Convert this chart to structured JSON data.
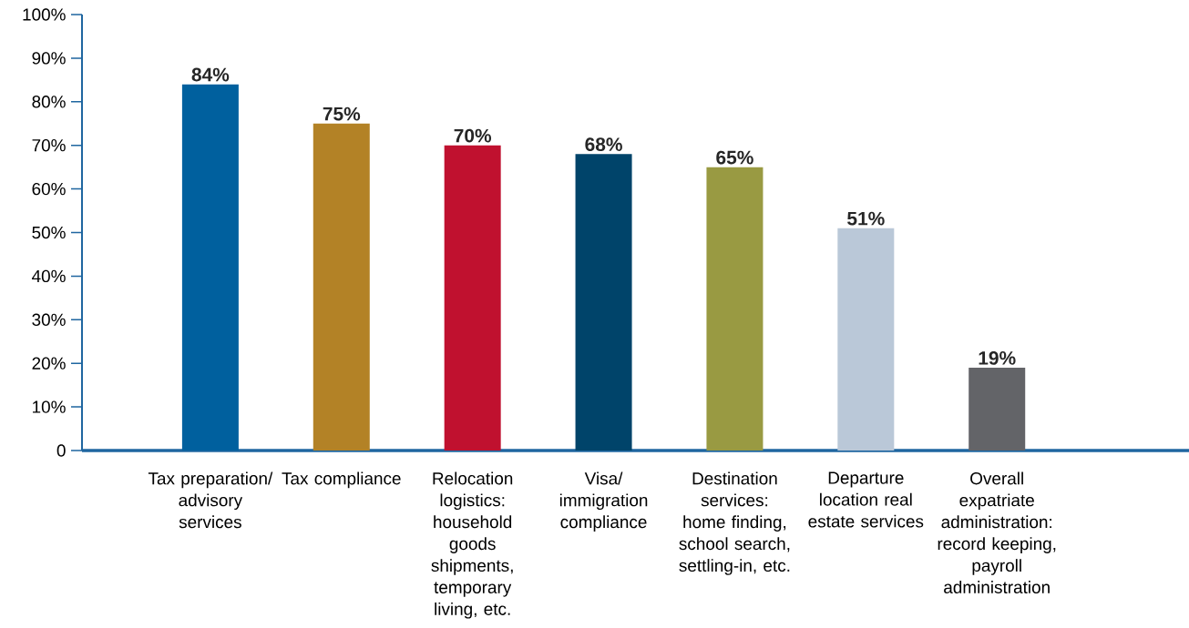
{
  "chart_data": {
    "type": "bar",
    "categories": [
      "Tax preparation/ advisory services",
      "Tax compliance",
      "Relocation logistics: household goods shipments, temporary living, etc.",
      "Visa/ immigration compliance",
      "Destination services: home finding, school search, settling-in, etc.",
      "Departure location real estate services",
      "Overall expatriate administration: record keeping, payroll administration"
    ],
    "values": [
      84,
      75,
      70,
      68,
      65,
      51,
      19
    ],
    "value_labels": [
      "84%",
      "75%",
      "70%",
      "68%",
      "65%",
      "51%",
      "19%"
    ],
    "colors": [
      "#00609e",
      "#b38226",
      "#c0112f",
      "#00446a",
      "#999a42",
      "#bac8d8",
      "#636468"
    ],
    "ylim": [
      0,
      100
    ],
    "yticks": [
      {
        "value": 0,
        "label": "0"
      },
      {
        "value": 10,
        "label": "10%"
      },
      {
        "value": 20,
        "label": "20%"
      },
      {
        "value": 30,
        "label": "30%"
      },
      {
        "value": 40,
        "label": "40%"
      },
      {
        "value": 50,
        "label": "50%"
      },
      {
        "value": 60,
        "label": "60%"
      },
      {
        "value": 70,
        "label": "70%"
      },
      {
        "value": 80,
        "label": "80%"
      },
      {
        "value": 90,
        "label": "90%"
      },
      {
        "value": 100,
        "label": "100%"
      }
    ]
  }
}
